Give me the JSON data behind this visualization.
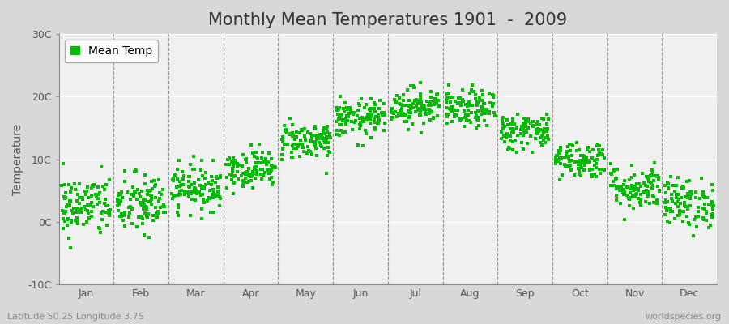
{
  "title": "Monthly Mean Temperatures 1901  -  2009",
  "ylabel": "Temperature",
  "ylim": [
    -10,
    30
  ],
  "yticks": [
    -10,
    0,
    10,
    20,
    30
  ],
  "ytick_labels": [
    "-10C",
    "0C",
    "10C",
    "20C",
    "30C"
  ],
  "months": [
    "Jan",
    "Feb",
    "Mar",
    "Apr",
    "May",
    "Jun",
    "Jul",
    "Aug",
    "Sep",
    "Oct",
    "Nov",
    "Dec"
  ],
  "start_year": 1901,
  "end_year": 2009,
  "mean_temps": [
    2.5,
    2.8,
    5.5,
    8.5,
    13.0,
    16.5,
    18.5,
    18.0,
    14.5,
    10.0,
    5.5,
    3.0
  ],
  "std_temps": [
    2.5,
    2.5,
    1.8,
    1.5,
    1.5,
    1.5,
    1.5,
    1.5,
    1.5,
    1.5,
    1.8,
    2.0
  ],
  "dot_color": "#00BB00",
  "dot_size": 5,
  "outer_bg_color": "#D8D8D8",
  "plot_bg_color": "#F0F0F0",
  "legend_label": "Mean Temp",
  "bottom_left_text": "Latitude 50.25 Longitude 3.75",
  "bottom_right_text": "worldspecies.org",
  "title_fontsize": 15,
  "axis_fontsize": 10,
  "tick_fontsize": 9,
  "annotation_fontsize": 8,
  "seed": 42
}
